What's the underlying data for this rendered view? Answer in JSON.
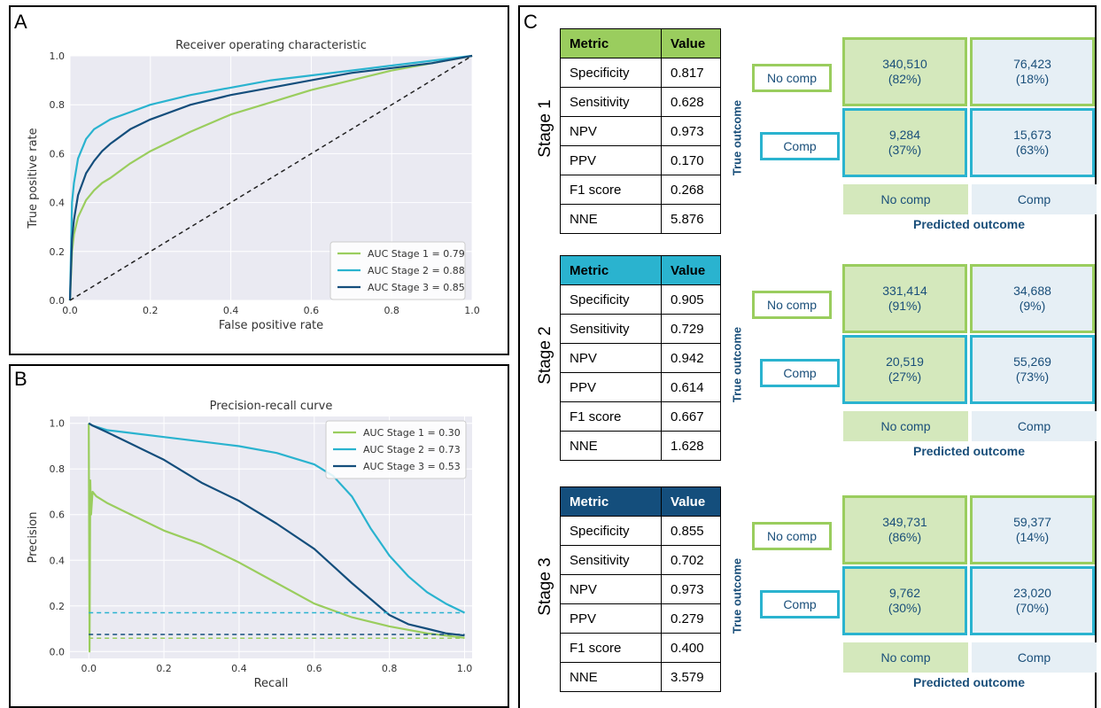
{
  "colors": {
    "stage1": "#9acd5e",
    "stage2": "#2ab3cf",
    "stage3": "#144e7c",
    "diag": "#222222",
    "plot_bg": "#eaeaf2",
    "cell_green": "#d4e8bc",
    "cell_blue": "#e6eff5",
    "text_blue": "#1a4f7a"
  },
  "panels": {
    "a": "A",
    "b": "B",
    "c": "C"
  },
  "chart_data": [
    {
      "type": "line",
      "title": "Receiver operating characteristic",
      "xlabel": "False positive rate",
      "ylabel": "True positive rate",
      "xlim": [
        0,
        1
      ],
      "ylim": [
        0,
        1
      ],
      "xticks": [
        "0.0",
        "0.2",
        "0.4",
        "0.6",
        "0.8",
        "1.0"
      ],
      "yticks": [
        "0.0",
        "0.2",
        "0.4",
        "0.6",
        "0.8",
        "1.0"
      ],
      "grid": true,
      "legend_position": "lower-right",
      "series": [
        {
          "name": "AUC Stage 1 = 0.79",
          "color": "#9acd5e",
          "x": [
            0,
            0.005,
            0.01,
            0.02,
            0.04,
            0.06,
            0.08,
            0.1,
            0.15,
            0.2,
            0.3,
            0.4,
            0.5,
            0.6,
            0.7,
            0.8,
            0.9,
            1.0
          ],
          "y": [
            0,
            0.2,
            0.27,
            0.34,
            0.41,
            0.45,
            0.48,
            0.5,
            0.56,
            0.61,
            0.69,
            0.76,
            0.81,
            0.86,
            0.9,
            0.94,
            0.97,
            1.0
          ]
        },
        {
          "name": "AUC Stage 2 = 0.88",
          "color": "#2ab3cf",
          "x": [
            0,
            0.005,
            0.01,
            0.02,
            0.04,
            0.06,
            0.08,
            0.1,
            0.15,
            0.2,
            0.3,
            0.4,
            0.5,
            0.6,
            0.7,
            0.8,
            0.9,
            1.0
          ],
          "y": [
            0,
            0.4,
            0.48,
            0.58,
            0.66,
            0.7,
            0.72,
            0.74,
            0.77,
            0.8,
            0.84,
            0.87,
            0.9,
            0.92,
            0.94,
            0.96,
            0.98,
            1.0
          ]
        },
        {
          "name": "AUC Stage 3 = 0.85",
          "color": "#144e7c",
          "x": [
            0,
            0.005,
            0.01,
            0.02,
            0.04,
            0.06,
            0.08,
            0.1,
            0.15,
            0.2,
            0.3,
            0.4,
            0.5,
            0.6,
            0.7,
            0.8,
            0.9,
            1.0
          ],
          "y": [
            0,
            0.25,
            0.33,
            0.43,
            0.52,
            0.57,
            0.61,
            0.64,
            0.7,
            0.74,
            0.8,
            0.84,
            0.87,
            0.9,
            0.93,
            0.95,
            0.97,
            1.0
          ]
        },
        {
          "name": "",
          "color": "#222222",
          "dashed": true,
          "x": [
            0,
            1
          ],
          "y": [
            0,
            1
          ]
        }
      ]
    },
    {
      "type": "line",
      "title": "Precision-recall curve",
      "xlabel": "Recall",
      "ylabel": "Precision",
      "xlim": [
        -0.05,
        1.02
      ],
      "ylim": [
        -0.03,
        1.03
      ],
      "xticks": [
        "0.0",
        "0.2",
        "0.4",
        "0.6",
        "0.8",
        "1.0"
      ],
      "yticks": [
        "0.0",
        "0.2",
        "0.4",
        "0.6",
        "0.8",
        "1.0"
      ],
      "grid": true,
      "legend_position": "top-right",
      "series": [
        {
          "name": "AUC Stage 1 = 0.30",
          "color": "#9acd5e",
          "x": [
            0,
            0.002,
            0.004,
            0.006,
            0.01,
            0.02,
            0.05,
            0.1,
            0.2,
            0.3,
            0.4,
            0.5,
            0.6,
            0.7,
            0.8,
            0.9,
            1.0
          ],
          "y": [
            1.0,
            0.0,
            0.75,
            0.6,
            0.7,
            0.68,
            0.65,
            0.61,
            0.53,
            0.47,
            0.39,
            0.3,
            0.21,
            0.15,
            0.11,
            0.08,
            0.06
          ]
        },
        {
          "name": "AUC Stage 2 = 0.73",
          "color": "#2ab3cf",
          "x": [
            0,
            0.01,
            0.05,
            0.1,
            0.2,
            0.3,
            0.4,
            0.5,
            0.6,
            0.65,
            0.7,
            0.75,
            0.8,
            0.85,
            0.9,
            0.95,
            1.0
          ],
          "y": [
            1.0,
            0.99,
            0.97,
            0.96,
            0.94,
            0.92,
            0.9,
            0.87,
            0.82,
            0.77,
            0.68,
            0.54,
            0.42,
            0.33,
            0.26,
            0.21,
            0.17
          ]
        },
        {
          "name": "AUC Stage 3 = 0.53",
          "color": "#144e7c",
          "x": [
            0,
            0.01,
            0.05,
            0.1,
            0.2,
            0.3,
            0.4,
            0.5,
            0.6,
            0.7,
            0.75,
            0.8,
            0.85,
            0.9,
            0.95,
            1.0
          ],
          "y": [
            1.0,
            0.99,
            0.96,
            0.92,
            0.84,
            0.74,
            0.66,
            0.56,
            0.45,
            0.3,
            0.23,
            0.16,
            0.12,
            0.1,
            0.08,
            0.07
          ]
        },
        {
          "name": "",
          "color": "#2ab3cf",
          "dashed": true,
          "x": [
            0,
            1
          ],
          "y": [
            0.17,
            0.17
          ]
        },
        {
          "name": "",
          "color": "#144e7c",
          "dashed": true,
          "x": [
            0,
            1
          ],
          "y": [
            0.075,
            0.075
          ]
        },
        {
          "name": "",
          "color": "#9acd5e",
          "dashed": true,
          "x": [
            0,
            1
          ],
          "y": [
            0.058,
            0.058
          ]
        }
      ]
    },
    {
      "type": "table",
      "predicted_label": "Predicted outcome",
      "true_label": "True outcome",
      "row_labels": [
        "No comp",
        "Comp"
      ],
      "col_labels": [
        "No comp",
        "Comp"
      ],
      "metric_header": "Metric",
      "value_header": "Value",
      "stages": [
        {
          "name": "Stage 1",
          "metrics": [
            {
              "metric": "Specificity",
              "value": "0.817"
            },
            {
              "metric": "Sensitivity",
              "value": "0.628"
            },
            {
              "metric": "NPV",
              "value": "0.973"
            },
            {
              "metric": "PPV",
              "value": "0.170"
            },
            {
              "metric": "F1 score",
              "value": "0.268"
            },
            {
              "metric": "NNE",
              "value": "5.876"
            }
          ],
          "matrix": [
            [
              {
                "count": "340,510",
                "pct": "(82%)"
              },
              {
                "count": "76,423",
                "pct": "(18%)"
              }
            ],
            [
              {
                "count": "9,284",
                "pct": "(37%)"
              },
              {
                "count": "15,673",
                "pct": "(63%)"
              }
            ]
          ]
        },
        {
          "name": "Stage 2",
          "metrics": [
            {
              "metric": "Specificity",
              "value": "0.905"
            },
            {
              "metric": "Sensitivity",
              "value": "0.729"
            },
            {
              "metric": "NPV",
              "value": "0.942"
            },
            {
              "metric": "PPV",
              "value": "0.614"
            },
            {
              "metric": "F1 score",
              "value": "0.667"
            },
            {
              "metric": "NNE",
              "value": "1.628"
            }
          ],
          "matrix": [
            [
              {
                "count": "331,414",
                "pct": "(91%)"
              },
              {
                "count": "34,688",
                "pct": "(9%)"
              }
            ],
            [
              {
                "count": "20,519",
                "pct": "(27%)"
              },
              {
                "count": "55,269",
                "pct": "(73%)"
              }
            ]
          ]
        },
        {
          "name": "Stage 3",
          "metrics": [
            {
              "metric": "Specificity",
              "value": "0.855"
            },
            {
              "metric": "Sensitivity",
              "value": "0.702"
            },
            {
              "metric": "NPV",
              "value": "0.973"
            },
            {
              "metric": "PPV",
              "value": "0.279"
            },
            {
              "metric": "F1 score",
              "value": "0.400"
            },
            {
              "metric": "NNE",
              "value": "3.579"
            }
          ],
          "matrix": [
            [
              {
                "count": "349,731",
                "pct": "(86%)"
              },
              {
                "count": "59,377",
                "pct": "(14%)"
              }
            ],
            [
              {
                "count": "9,762",
                "pct": "(30%)"
              },
              {
                "count": "23,020",
                "pct": "(70%)"
              }
            ]
          ]
        }
      ]
    }
  ]
}
